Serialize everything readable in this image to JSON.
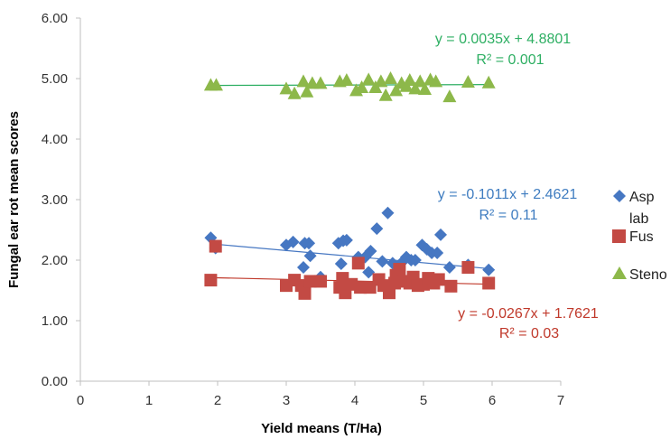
{
  "chart_data": {
    "type": "scatter",
    "xlabel": "Yield means (T/Ha)",
    "ylabel": "Fungal ear rot mean scores",
    "xlim": [
      0,
      7
    ],
    "ylim": [
      0,
      6
    ],
    "x_ticks": [
      "0",
      "1",
      "2",
      "3",
      "4",
      "5",
      "6",
      "7"
    ],
    "y_ticks": [
      "0.00",
      "1.00",
      "2.00",
      "3.00",
      "4.00",
      "5.00",
      "6.00"
    ],
    "grid": false,
    "legend_position": "right",
    "series": [
      {
        "name": "Asp lab",
        "legend_line1": "Asp",
        "legend_line2": "lab",
        "marker": "diamond",
        "color": "#4677C2",
        "trend_color": "#4677C2",
        "equation": "y = -0.1011x + 2.4621",
        "r2": "R² = 0.11",
        "slope": -0.1011,
        "intercept": 2.4621,
        "trend_x": [
          1.9,
          6.0
        ],
        "points": [
          [
            1.9,
            2.37
          ],
          [
            1.97,
            2.2
          ],
          [
            3.0,
            2.25
          ],
          [
            3.1,
            2.3
          ],
          [
            3.25,
            1.88
          ],
          [
            3.27,
            2.28
          ],
          [
            3.33,
            2.28
          ],
          [
            3.35,
            2.07
          ],
          [
            3.5,
            1.72
          ],
          [
            3.76,
            2.28
          ],
          [
            3.8,
            1.94
          ],
          [
            3.83,
            2.32
          ],
          [
            3.88,
            2.33
          ],
          [
            4.05,
            2.05
          ],
          [
            4.15,
            2.05
          ],
          [
            4.2,
            1.8
          ],
          [
            4.23,
            2.15
          ],
          [
            4.32,
            2.52
          ],
          [
            4.4,
            1.98
          ],
          [
            4.48,
            2.78
          ],
          [
            4.55,
            1.95
          ],
          [
            4.7,
            1.98
          ],
          [
            4.75,
            2.05
          ],
          [
            4.82,
            2.0
          ],
          [
            4.88,
            2.0
          ],
          [
            4.98,
            2.25
          ],
          [
            5.05,
            2.18
          ],
          [
            5.12,
            2.12
          ],
          [
            5.2,
            2.12
          ],
          [
            5.25,
            2.42
          ],
          [
            5.38,
            1.88
          ],
          [
            5.65,
            1.92
          ],
          [
            5.95,
            1.84
          ]
        ]
      },
      {
        "name": "Fus",
        "marker": "square",
        "color": "#C34A44",
        "trend_color": "#C0392B",
        "equation": "y = -0.0267x + 1.7621",
        "r2": "R² = 0.03",
        "slope": -0.0267,
        "intercept": 1.7621,
        "trend_x": [
          1.9,
          6.0
        ],
        "points": [
          [
            1.9,
            1.67
          ],
          [
            1.97,
            2.23
          ],
          [
            3.0,
            1.58
          ],
          [
            3.12,
            1.67
          ],
          [
            3.22,
            1.58
          ],
          [
            3.27,
            1.45
          ],
          [
            3.35,
            1.65
          ],
          [
            3.5,
            1.65
          ],
          [
            3.78,
            1.55
          ],
          [
            3.82,
            1.7
          ],
          [
            3.86,
            1.46
          ],
          [
            3.95,
            1.6
          ],
          [
            4.05,
            1.95
          ],
          [
            4.08,
            1.55
          ],
          [
            4.22,
            1.55
          ],
          [
            4.35,
            1.68
          ],
          [
            4.42,
            1.58
          ],
          [
            4.5,
            1.46
          ],
          [
            4.58,
            1.62
          ],
          [
            4.6,
            1.75
          ],
          [
            4.65,
            1.85
          ],
          [
            4.72,
            1.65
          ],
          [
            4.8,
            1.62
          ],
          [
            4.85,
            1.72
          ],
          [
            4.92,
            1.58
          ],
          [
            5.0,
            1.6
          ],
          [
            5.07,
            1.7
          ],
          [
            5.15,
            1.62
          ],
          [
            5.22,
            1.68
          ],
          [
            5.4,
            1.57
          ],
          [
            5.65,
            1.88
          ],
          [
            5.95,
            1.62
          ]
        ]
      },
      {
        "name": "Steno",
        "marker": "triangle",
        "color": "#8DB84A",
        "trend_color": "#2EAF63",
        "equation": "y = 0.0035x + 4.8801",
        "r2": "R² = 0.001",
        "slope": 0.0035,
        "intercept": 4.8801,
        "trend_x": [
          1.9,
          6.0
        ],
        "points": [
          [
            1.9,
            4.89
          ],
          [
            1.98,
            4.89
          ],
          [
            3.0,
            4.83
          ],
          [
            3.12,
            4.75
          ],
          [
            3.25,
            4.95
          ],
          [
            3.3,
            4.78
          ],
          [
            3.38,
            4.92
          ],
          [
            3.5,
            4.92
          ],
          [
            3.78,
            4.95
          ],
          [
            3.88,
            4.97
          ],
          [
            4.02,
            4.8
          ],
          [
            4.1,
            4.85
          ],
          [
            4.2,
            4.98
          ],
          [
            4.3,
            4.85
          ],
          [
            4.38,
            4.95
          ],
          [
            4.45,
            4.72
          ],
          [
            4.52,
            5.0
          ],
          [
            4.6,
            4.8
          ],
          [
            4.68,
            4.92
          ],
          [
            4.75,
            4.87
          ],
          [
            4.8,
            4.97
          ],
          [
            4.88,
            4.83
          ],
          [
            4.95,
            4.95
          ],
          [
            5.02,
            4.82
          ],
          [
            5.1,
            4.98
          ],
          [
            5.18,
            4.95
          ],
          [
            5.38,
            4.7
          ],
          [
            5.65,
            4.94
          ],
          [
            5.95,
            4.93
          ]
        ]
      }
    ]
  }
}
